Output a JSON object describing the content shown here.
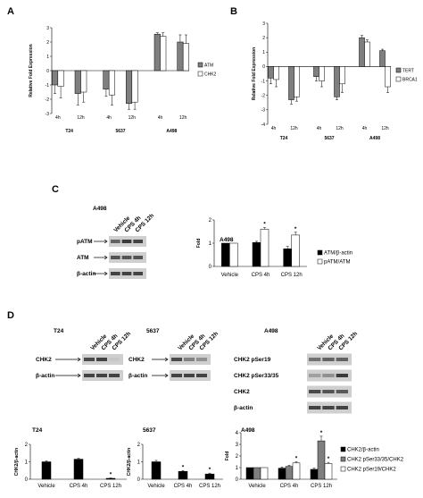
{
  "panels": {
    "A": "A",
    "B": "B",
    "C": "C",
    "D": "D"
  },
  "colors": {
    "dark": "#7f7f7f",
    "light": "#ffffff",
    "black": "#000000",
    "blot_bg": "#cfcfcf",
    "band": "#333333"
  },
  "chart_data": [
    {
      "id": "A",
      "type": "bar",
      "ylabel": "Relative Fold Expression",
      "ylim": [
        -3,
        3
      ],
      "yticks": [
        "3",
        "2",
        "1",
        "0",
        "-1",
        "-2",
        "-3"
      ],
      "groups": [
        "T24",
        "5637",
        "A498"
      ],
      "categories": [
        "4h",
        "12h",
        "4h",
        "12h",
        "4h",
        "12h"
      ],
      "series": [
        {
          "name": "ATM",
          "values": [
            -1.0,
            -1.6,
            -1.3,
            -2.3,
            2.55,
            2.0
          ],
          "err": [
            0.6,
            0.8,
            0.5,
            0.4,
            0.1,
            0.5
          ]
        },
        {
          "name": "CHK2",
          "values": [
            -1.1,
            -1.5,
            -1.7,
            -2.2,
            2.4,
            1.9
          ],
          "err": [
            0.8,
            0.7,
            0.7,
            0.5,
            0.25,
            0.6
          ]
        }
      ]
    },
    {
      "id": "B",
      "type": "bar",
      "ylabel": "Relative Fold Expression",
      "ylim": [
        -4,
        3
      ],
      "yticks": [
        "3",
        "2",
        "1",
        "0",
        "-1",
        "-2",
        "-3",
        "-4"
      ],
      "groups": [
        "T24",
        "5637",
        "A498"
      ],
      "categories": [
        "4h",
        "12h",
        "4h",
        "12h",
        "4h",
        "12h"
      ],
      "series": [
        {
          "name": "TERT",
          "values": [
            -0.8,
            -2.3,
            -0.7,
            -2.1,
            2.0,
            1.1
          ],
          "err": [
            0.4,
            0.3,
            0.3,
            0.2,
            0.15,
            0.1
          ]
        },
        {
          "name": "BRCA1",
          "values": [
            -0.9,
            -2.1,
            -1.0,
            -1.2,
            1.7,
            -1.4
          ],
          "err": [
            0.5,
            0.3,
            0.4,
            0.6,
            0.15,
            0.4
          ]
        }
      ]
    },
    {
      "id": "C",
      "type": "bar",
      "title": "A498",
      "ylabel": "Fold",
      "ylim": [
        0,
        2
      ],
      "yticks": [
        "2",
        "1",
        "0"
      ],
      "categories": [
        "Vehicle",
        "CPS 4h",
        "CPS 12h"
      ],
      "series": [
        {
          "name": "ATM/β-actin",
          "values": [
            1.0,
            1.03,
            0.76
          ],
          "err": [
            0,
            0.05,
            0.1
          ]
        },
        {
          "name": "pATM/ATM",
          "values": [
            1.0,
            1.6,
            1.35
          ],
          "err": [
            0,
            0.07,
            0.12
          ]
        }
      ],
      "sig": [
        "*",
        "*"
      ]
    },
    {
      "id": "D1",
      "type": "bar",
      "title": "T24",
      "ylabel": "CHK2/β-actin",
      "ylim": [
        0,
        2
      ],
      "yticks": [
        "2",
        "1",
        "0"
      ],
      "categories": [
        "Vehicle",
        "CPS 4h",
        "CPS 12h"
      ],
      "series": [
        {
          "name": "",
          "values": [
            1.0,
            1.15,
            0.05
          ],
          "err": [
            0.05,
            0.05,
            0.02
          ]
        }
      ],
      "sig": "*"
    },
    {
      "id": "D2",
      "type": "bar",
      "title": "5637",
      "ylabel": "CHK2/β-actin",
      "ylim": [
        0,
        2
      ],
      "yticks": [
        "2",
        "1",
        "0"
      ],
      "categories": [
        "Vehicle",
        "CPS 4h",
        "CPS 12h"
      ],
      "series": [
        {
          "name": "",
          "values": [
            1.0,
            0.45,
            0.3
          ],
          "err": [
            0.08,
            0.05,
            0.05
          ]
        }
      ],
      "sig": [
        "*",
        "*"
      ]
    },
    {
      "id": "D3",
      "type": "bar",
      "title": "A498",
      "ylabel": "Fold",
      "ylim": [
        0,
        4
      ],
      "yticks": [
        "4",
        "3",
        "2",
        "1",
        "0"
      ],
      "categories": [
        "Vehicle",
        "CPS 4h",
        "CPS 12h"
      ],
      "series": [
        {
          "name": "CHK2/β-actin",
          "values": [
            1.0,
            0.95,
            0.85
          ],
          "err": [
            0,
            0.1,
            0.1
          ]
        },
        {
          "name": "CHK2 pSer33/35/CHK2",
          "values": [
            1.0,
            1.1,
            3.3
          ],
          "err": [
            0,
            0.1,
            0.4
          ]
        },
        {
          "name": "CHK2 pSer19/CHK2",
          "values": [
            1.0,
            1.4,
            1.35
          ],
          "err": [
            0,
            0.1,
            0.1
          ]
        }
      ],
      "sig": [
        "*",
        "*",
        "*"
      ]
    }
  ],
  "blots": {
    "C": {
      "cell": "A498",
      "lanes": [
        "Vehicle",
        "CPS 4h",
        "CPS 12h"
      ],
      "rows": [
        "pATM",
        "ATM",
        "β-actin"
      ]
    },
    "D_T24": {
      "cell": "T24",
      "lanes": [
        "Vehicle",
        "CPS 4h",
        "CPS 12h"
      ],
      "rows": [
        "CHK2",
        "β-actin"
      ]
    },
    "D_5637": {
      "cell": "5637",
      "lanes": [
        "Vehicle",
        "CPS 4h",
        "CPS 12h"
      ],
      "rows": [
        "CHK2",
        "β-actin"
      ]
    },
    "D_A498": {
      "cell": "A498",
      "lanes": [
        "Vehicle",
        "CPS 4h",
        "CPS 12h"
      ],
      "rows": [
        "CHK2 pSer19",
        "CHK2 pSer33/35",
        "CHK2",
        "β-actin"
      ]
    }
  }
}
